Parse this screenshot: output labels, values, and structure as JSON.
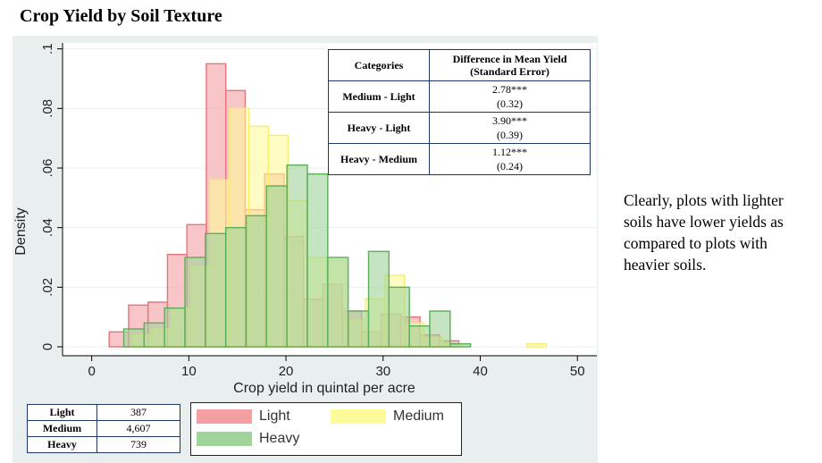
{
  "title": "Crop Yield by Soil Texture",
  "note": "Clearly, plots with lighter soils have lower yields as compared to plots with heavier soils.",
  "stats_table": {
    "headers": [
      "Categories",
      "Difference in Mean Yield (Standard Error)"
    ],
    "rows": [
      {
        "category": "Medium - Light",
        "estimate": "2.78***",
        "se": "(0.32)"
      },
      {
        "category": "Heavy - Light",
        "estimate": "3.90***",
        "se": "(0.39)"
      },
      {
        "category": "Heavy - Medium",
        "estimate": "1.12***",
        "se": "(0.24)"
      }
    ]
  },
  "counts_table": {
    "rows": [
      {
        "label": "Light",
        "n": "387"
      },
      {
        "label": "Medium",
        "n": "4,607"
      },
      {
        "label": "Heavy",
        "n": "739"
      }
    ]
  },
  "legend": {
    "items": [
      {
        "label": "Light",
        "color": "#f4a0a3"
      },
      {
        "label": "Medium",
        "color": "#fdfa9a"
      },
      {
        "label": "Heavy",
        "color": "#9fd49a"
      }
    ]
  },
  "chart_data": {
    "type": "histogram",
    "xlabel": "Crop yield in quintal per acre",
    "ylabel": "Density",
    "xlim": [
      -3,
      52
    ],
    "ylim": [
      -0.003,
      0.102
    ],
    "xticks": [
      0,
      10,
      20,
      30,
      40,
      50
    ],
    "yticks": [
      0,
      0.02,
      0.04,
      0.06,
      0.08,
      0.1
    ],
    "ytick_labels": [
      "0",
      ".02",
      ".04",
      ".06",
      ".08",
      ".1"
    ],
    "grid": true,
    "legend_position": "bottom",
    "series": [
      {
        "name": "Light",
        "fill": "#f4a0a3",
        "stroke": "#e8737a",
        "bin_width": 2.0,
        "bins": [
          [
            1.8,
            0.005
          ],
          [
            3.8,
            0.014
          ],
          [
            5.8,
            0.015
          ],
          [
            7.8,
            0.031
          ],
          [
            9.8,
            0.041
          ],
          [
            11.8,
            0.095
          ],
          [
            13.8,
            0.086
          ],
          [
            15.8,
            0.046
          ],
          [
            17.8,
            0.058
          ],
          [
            19.8,
            0.037
          ],
          [
            21.8,
            0.016
          ],
          [
            23.8,
            0.021
          ],
          [
            25.8,
            0.012
          ],
          [
            27.8,
            0.005
          ],
          [
            29.8,
            0.011
          ],
          [
            31.8,
            0.01
          ],
          [
            33.8,
            0.004
          ],
          [
            35.8,
            0.002
          ]
        ]
      },
      {
        "name": "Medium",
        "fill": "#fdfa9a",
        "stroke": "#f4ef6a",
        "bin_width": 2.0,
        "bins": [
          [
            4.2,
            0.004
          ],
          [
            6.2,
            0.006
          ],
          [
            8.2,
            0.013
          ],
          [
            10.2,
            0.027
          ],
          [
            12.2,
            0.056
          ],
          [
            14.2,
            0.08
          ],
          [
            16.2,
            0.074
          ],
          [
            18.2,
            0.071
          ],
          [
            20.2,
            0.049
          ],
          [
            22.2,
            0.03
          ],
          [
            24.2,
            0.029
          ],
          [
            26.2,
            0.009
          ],
          [
            28.2,
            0.016
          ],
          [
            30.2,
            0.024
          ],
          [
            32.2,
            0.008
          ],
          [
            34.2,
            0.003
          ],
          [
            36.2,
            0.001
          ],
          [
            44.8,
            0.001
          ]
        ]
      },
      {
        "name": "Heavy",
        "fill": "#9fd49a",
        "stroke": "#5cae5a",
        "bin_width": 2.1,
        "bins": [
          [
            3.3,
            0.006
          ],
          [
            5.4,
            0.008
          ],
          [
            7.5,
            0.013
          ],
          [
            9.6,
            0.03
          ],
          [
            11.7,
            0.038
          ],
          [
            13.8,
            0.04
          ],
          [
            15.9,
            0.044
          ],
          [
            18.0,
            0.054
          ],
          [
            20.1,
            0.061
          ],
          [
            22.2,
            0.058
          ],
          [
            24.3,
            0.03
          ],
          [
            26.4,
            0.012
          ],
          [
            28.5,
            0.032
          ],
          [
            30.6,
            0.02
          ],
          [
            32.7,
            0.007
          ],
          [
            34.8,
            0.012
          ],
          [
            36.9,
            0.001
          ]
        ]
      }
    ]
  }
}
